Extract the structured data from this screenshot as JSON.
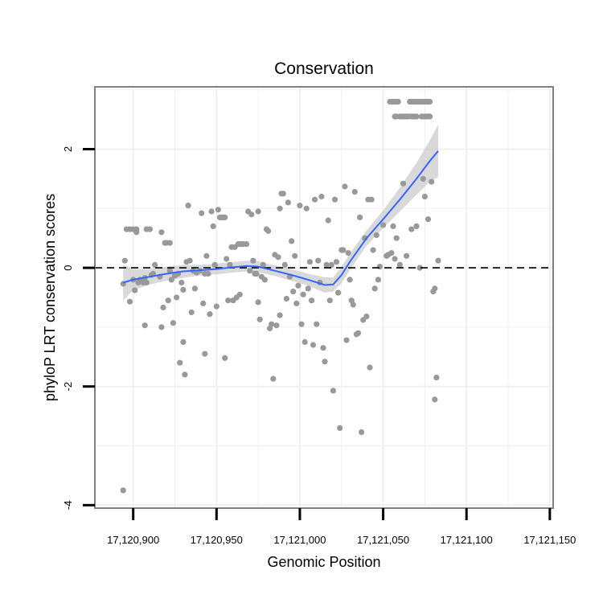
{
  "chart_data": {
    "type": "scatter",
    "title": "Conservation",
    "xlabel": "Genomic Position",
    "ylabel": "phyloP LRT conservation scores",
    "xlim": [
      17120877,
      17121152
    ],
    "ylim": [
      -4.05,
      3.05
    ],
    "x_ticks": [
      17120900,
      17120950,
      17121000,
      17121050,
      17121100,
      17121150
    ],
    "x_tick_labels": [
      "17,120,900",
      "17,120,950",
      "17,121,000",
      "17,121,050",
      "17,121,100",
      "17,121,150"
    ],
    "y_ticks": [
      -4,
      -2,
      0,
      2
    ],
    "y_tick_labels": [
      "-4",
      "-2",
      "0",
      "2"
    ],
    "grid": true,
    "reference_line": {
      "y": 0,
      "style": "dashed"
    },
    "colors": {
      "points": "#999999",
      "smooth": "#3366ff",
      "ribbon": "#cccccc",
      "grid": "#f0f0f0",
      "panel_border": "#808080"
    },
    "points": [
      [
        17120894,
        -3.75
      ],
      [
        17120894,
        -0.27
      ],
      [
        17120895,
        0.12
      ],
      [
        17120896,
        0.65
      ],
      [
        17120898,
        0.65
      ],
      [
        17120898,
        -0.57
      ],
      [
        17120900,
        0.65
      ],
      [
        17120900,
        -0.2
      ],
      [
        17120901,
        -0.38
      ],
      [
        17120902,
        0.6
      ],
      [
        17120902,
        0.65
      ],
      [
        17120903,
        -0.25
      ],
      [
        17120904,
        -0.2
      ],
      [
        17120906,
        -0.25
      ],
      [
        17120907,
        -0.97
      ],
      [
        17120907,
        -0.17
      ],
      [
        17120908,
        0.65
      ],
      [
        17120908,
        -0.25
      ],
      [
        17120910,
        0.65
      ],
      [
        17120911,
        -0.12
      ],
      [
        17120912,
        -0.1
      ],
      [
        17120913,
        0.05
      ],
      [
        17120916,
        -0.15
      ],
      [
        17120917,
        -1.0
      ],
      [
        17120917,
        0.6
      ],
      [
        17120918,
        -0.67
      ],
      [
        17120919,
        0.42
      ],
      [
        17120920,
        0.42
      ],
      [
        17120921,
        -0.55
      ],
      [
        17120922,
        0.42
      ],
      [
        17120922,
        -0.05
      ],
      [
        17120923,
        -0.2
      ],
      [
        17120924,
        -0.93
      ],
      [
        17120925,
        -0.13
      ],
      [
        17120926,
        -0.5
      ],
      [
        17120927,
        -0.1
      ],
      [
        17120928,
        -1.6
      ],
      [
        17120929,
        -0.25
      ],
      [
        17120930,
        -1.25
      ],
      [
        17120930,
        -0.37
      ],
      [
        17120931,
        -1.8
      ],
      [
        17120932,
        0.1
      ],
      [
        17120933,
        1.05
      ],
      [
        17120934,
        0.12
      ],
      [
        17120935,
        -0.75
      ],
      [
        17120936,
        -0.05
      ],
      [
        17120937,
        -0.35
      ],
      [
        17120938,
        -0.08
      ],
      [
        17120940,
        -0.05
      ],
      [
        17120941,
        0.92
      ],
      [
        17120942,
        -0.6
      ],
      [
        17120943,
        -0.1
      ],
      [
        17120943,
        -1.45
      ],
      [
        17120944,
        0.2
      ],
      [
        17120945,
        -0.1
      ],
      [
        17120946,
        -0.78
      ],
      [
        17120947,
        0.95
      ],
      [
        17120948,
        0.7
      ],
      [
        17120949,
        0.05
      ],
      [
        17120950,
        -0.65
      ],
      [
        17120951,
        0.98
      ],
      [
        17120952,
        0.85
      ],
      [
        17120953,
        0.85
      ],
      [
        17120954,
        0.85
      ],
      [
        17120955,
        0.85
      ],
      [
        17120955,
        -1.52
      ],
      [
        17120956,
        0.15
      ],
      [
        17120957,
        -0.55
      ],
      [
        17120958,
        0.05
      ],
      [
        17120959,
        0.35
      ],
      [
        17120960,
        -0.55
      ],
      [
        17120961,
        0.35
      ],
      [
        17120962,
        -0.5
      ],
      [
        17120963,
        0.4
      ],
      [
        17120964,
        0.4
      ],
      [
        17120964,
        -0.45
      ],
      [
        17120965,
        0.4
      ],
      [
        17120966,
        0.4
      ],
      [
        17120968,
        0.4
      ],
      [
        17120969,
        0.95
      ],
      [
        17120970,
        -0.05
      ],
      [
        17120971,
        0.9
      ],
      [
        17120972,
        0.12
      ],
      [
        17120973,
        -0.1
      ],
      [
        17120974,
        -0.1
      ],
      [
        17120975,
        0.95
      ],
      [
        17120975,
        -0.58
      ],
      [
        17120976,
        -0.87
      ],
      [
        17120977,
        -0.15
      ],
      [
        17120978,
        0.05
      ],
      [
        17120979,
        -0.2
      ],
      [
        17120980,
        0.65
      ],
      [
        17120981,
        0.62
      ],
      [
        17120982,
        -1.02
      ],
      [
        17120983,
        -0.95
      ],
      [
        17120984,
        -1.87
      ],
      [
        17120985,
        0.22
      ],
      [
        17120986,
        -0.97
      ],
      [
        17120987,
        0.18
      ],
      [
        17120988,
        1.0
      ],
      [
        17120988,
        -0.8
      ],
      [
        17120989,
        1.25
      ],
      [
        17120990,
        1.25
      ],
      [
        17120991,
        0.05
      ],
      [
        17120992,
        -0.52
      ],
      [
        17120993,
        1.1
      ],
      [
        17120994,
        -0.15
      ],
      [
        17120995,
        0.45
      ],
      [
        17120996,
        -0.4
      ],
      [
        17120997,
        0.2
      ],
      [
        17120998,
        -0.6
      ],
      [
        17120999,
        -0.3
      ],
      [
        17121000,
        1.05
      ],
      [
        17121001,
        -0.95
      ],
      [
        17121002,
        -0.45
      ],
      [
        17121003,
        -1.25
      ],
      [
        17121004,
        1.0
      ],
      [
        17121005,
        -0.35
      ],
      [
        17121006,
        0.1
      ],
      [
        17121007,
        -0.55
      ],
      [
        17121008,
        -1.3
      ],
      [
        17121009,
        1.15
      ],
      [
        17121010,
        -0.95
      ],
      [
        17121011,
        0.12
      ],
      [
        17121012,
        -0.25
      ],
      [
        17121013,
        1.2
      ],
      [
        17121014,
        -1.35
      ],
      [
        17121015,
        -1.58
      ],
      [
        17121016,
        0.05
      ],
      [
        17121017,
        0.8
      ],
      [
        17121018,
        -0.55
      ],
      [
        17121019,
        0.05
      ],
      [
        17121020,
        -2.07
      ],
      [
        17121021,
        1.15
      ],
      [
        17121022,
        0.1
      ],
      [
        17121023,
        -0.42
      ],
      [
        17121024,
        -2.7
      ],
      [
        17121025,
        0.3
      ],
      [
        17121026,
        0.3
      ],
      [
        17121027,
        1.37
      ],
      [
        17121028,
        -1.22
      ],
      [
        17121029,
        0.25
      ],
      [
        17121030,
        -0.2
      ],
      [
        17121031,
        -0.55
      ],
      [
        17121032,
        -0.62
      ],
      [
        17121033,
        1.28
      ],
      [
        17121034,
        -1.12
      ],
      [
        17121035,
        -1.1
      ],
      [
        17121036,
        0.85
      ],
      [
        17121037,
        -2.77
      ],
      [
        17121038,
        -0.88
      ],
      [
        17121039,
        0.5
      ],
      [
        17121040,
        -0.82
      ],
      [
        17121041,
        1.15
      ],
      [
        17121042,
        -1.68
      ],
      [
        17121043,
        1.15
      ],
      [
        17121044,
        0.3
      ],
      [
        17121045,
        -0.35
      ],
      [
        17121046,
        0.55
      ],
      [
        17121047,
        -0.2
      ],
      [
        17121048,
        0.02
      ],
      [
        17121050,
        0.72
      ],
      [
        17121052,
        0.2
      ],
      [
        17121053,
        0.22
      ],
      [
        17121055,
        0.25
      ],
      [
        17121056,
        0.7
      ],
      [
        17121057,
        0.15
      ],
      [
        17121058,
        0.5
      ],
      [
        17121060,
        0.05
      ],
      [
        17121062,
        1.42
      ],
      [
        17121064,
        0.2
      ],
      [
        17121067,
        0.65
      ],
      [
        17121070,
        0.7
      ],
      [
        17121072,
        0.0
      ],
      [
        17121074,
        1.5
      ],
      [
        17121075,
        1.2
      ],
      [
        17121077,
        0.82
      ],
      [
        17121079,
        1.45
      ],
      [
        17121080,
        -0.4
      ],
      [
        17121081,
        -0.35
      ],
      [
        17121081,
        -2.22
      ],
      [
        17121082,
        -1.85
      ],
      [
        17121083,
        0.12
      ],
      [
        17121054,
        2.8
      ],
      [
        17121055,
        2.8
      ],
      [
        17121056,
        2.8
      ],
      [
        17121057,
        2.8
      ],
      [
        17121058,
        2.8
      ],
      [
        17121059,
        2.8
      ],
      [
        17121066,
        2.8
      ],
      [
        17121067,
        2.8
      ],
      [
        17121068,
        2.8
      ],
      [
        17121069,
        2.8
      ],
      [
        17121070,
        2.8
      ],
      [
        17121071,
        2.8
      ],
      [
        17121072,
        2.8
      ],
      [
        17121073,
        2.8
      ],
      [
        17121074,
        2.8
      ],
      [
        17121075,
        2.8
      ],
      [
        17121076,
        2.8
      ],
      [
        17121077,
        2.8
      ],
      [
        17121078,
        2.8
      ],
      [
        17121057,
        2.55
      ],
      [
        17121058,
        2.55
      ],
      [
        17121060,
        2.55
      ],
      [
        17121061,
        2.55
      ],
      [
        17121062,
        2.55
      ],
      [
        17121063,
        2.55
      ],
      [
        17121064,
        2.55
      ],
      [
        17121065,
        2.55
      ],
      [
        17121067,
        2.55
      ],
      [
        17121068,
        2.55
      ],
      [
        17121069,
        2.55
      ],
      [
        17121070,
        2.55
      ],
      [
        17121073,
        2.55
      ],
      [
        17121074,
        2.55
      ],
      [
        17121075,
        2.55
      ],
      [
        17121076,
        2.55
      ],
      [
        17121077,
        2.55
      ],
      [
        17121078,
        2.55
      ]
    ],
    "smooth_series": {
      "name": "loess fit",
      "x": [
        17120894,
        17120900,
        17120910,
        17120920,
        17120930,
        17120940,
        17120950,
        17120960,
        17120968,
        17120975,
        17120985,
        17120995,
        17121005,
        17121015,
        17121020,
        17121025,
        17121030,
        17121040,
        17121050,
        17121060,
        17121070,
        17121078,
        17121083
      ],
      "y": [
        -0.25,
        -0.2,
        -0.15,
        -0.1,
        -0.06,
        -0.04,
        -0.02,
        0.01,
        0.03,
        0.02,
        -0.05,
        -0.12,
        -0.2,
        -0.29,
        -0.28,
        -0.12,
        0.1,
        0.5,
        0.82,
        1.15,
        1.5,
        1.8,
        1.97
      ],
      "lower": [
        -0.55,
        -0.38,
        -0.28,
        -0.22,
        -0.17,
        -0.13,
        -0.11,
        -0.08,
        -0.06,
        -0.07,
        -0.14,
        -0.22,
        -0.3,
        -0.42,
        -0.4,
        -0.26,
        -0.04,
        0.37,
        0.67,
        0.95,
        1.23,
        1.45,
        1.53
      ],
      "upper": [
        0.05,
        -0.02,
        -0.02,
        0.02,
        0.05,
        0.05,
        0.07,
        0.1,
        0.12,
        0.11,
        0.04,
        -0.02,
        -0.1,
        -0.16,
        -0.16,
        0.02,
        0.24,
        0.63,
        0.97,
        1.35,
        1.77,
        2.15,
        2.41
      ]
    }
  }
}
